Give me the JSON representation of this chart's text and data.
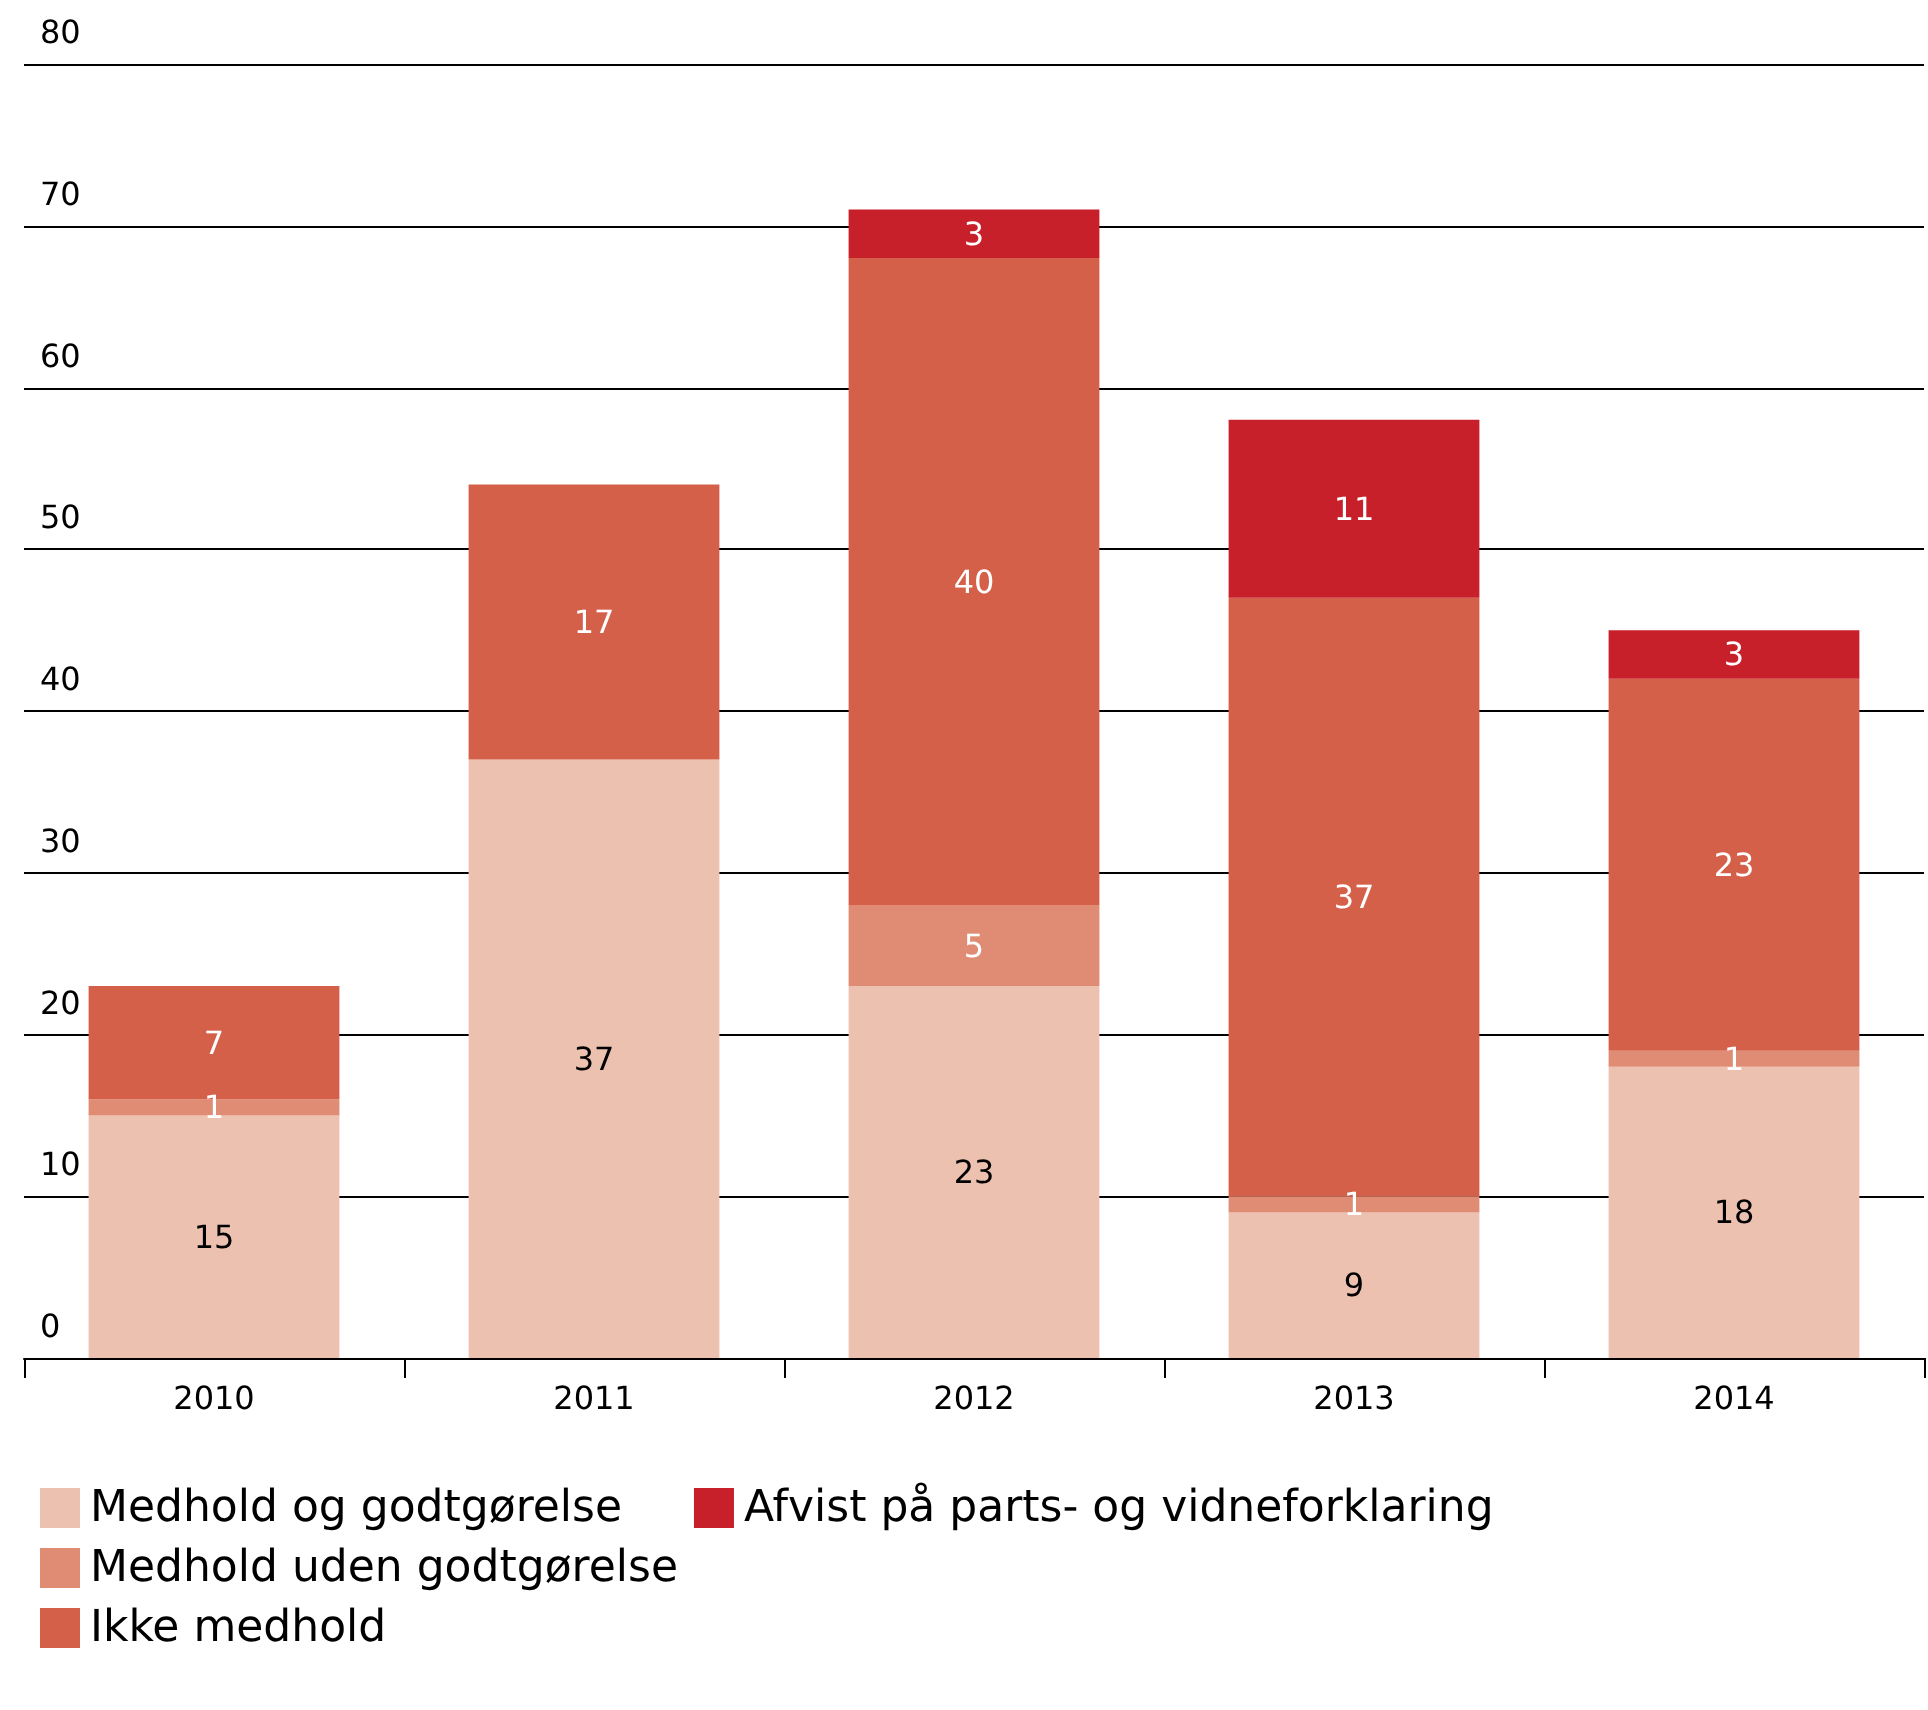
{
  "chart_data": {
    "type": "bar",
    "stacked": true,
    "categories": [
      "2010",
      "2011",
      "2012",
      "2013",
      "2014"
    ],
    "series": [
      {
        "name": "Medhold og godtgørelse",
        "color": "#edc1b0",
        "values": [
          15,
          37,
          23,
          9,
          18
        ]
      },
      {
        "name": "Medhold uden godtgørelse",
        "color": "#e08c74",
        "values": [
          1,
          null,
          5,
          1,
          1
        ]
      },
      {
        "name": "Ikke medhold",
        "color": "#d4604a",
        "values": [
          7,
          17,
          40,
          37,
          23
        ]
      },
      {
        "name": "Afvist på parts- og vidneforklaring",
        "color": "#c8202a",
        "values": [
          null,
          null,
          3,
          11,
          3
        ]
      }
    ],
    "ylim": [
      0,
      80
    ],
    "yticks": [
      0,
      10,
      20,
      30,
      40,
      50,
      60,
      70,
      80
    ],
    "grid": "y",
    "legend": "bottom left",
    "data_labels": true
  }
}
